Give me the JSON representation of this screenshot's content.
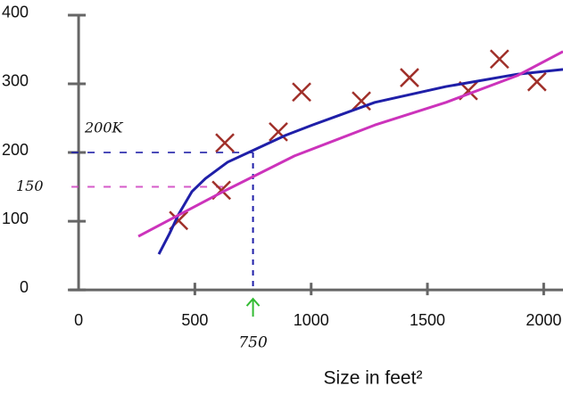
{
  "chart_data": {
    "type": "scatter",
    "x_label": "Size in feet²",
    "xlim": [
      -338,
      2083
    ],
    "ylim": [
      -153,
      422
    ],
    "xticks": [
      0,
      500,
      1000,
      1500,
      2000
    ],
    "yticks": [
      0,
      100,
      200,
      300,
      400
    ],
    "series": [
      {
        "type": "scatter",
        "color": "#a0302a",
        "x": [
          430,
          614,
          629,
          859,
          959,
          1216,
          1423,
          1676,
          1810,
          1971
        ],
        "values": [
          101,
          145,
          214,
          230,
          288,
          275,
          309,
          290,
          336,
          303
        ]
      },
      {
        "type": "line",
        "color": "#1f1fa8",
        "x": [
          345,
          391,
          430,
          487,
          545,
          641,
          737,
          890,
          1005,
          1274,
          1580,
          1887,
          2083
        ],
        "values": [
          52,
          82,
          110,
          143,
          162,
          186,
          201,
          225,
          240,
          273,
          296,
          314,
          321
        ]
      },
      {
        "type": "line",
        "color": "#cc33bb",
        "x": [
          257,
          621,
          928,
          1274,
          1580,
          1887,
          2083
        ],
        "values": [
          78,
          143,
          195,
          240,
          273,
          312,
          347
        ]
      }
    ],
    "annotations": [
      {
        "text": "200K",
        "y": 200,
        "x": 750,
        "color": "#1f1fa8"
      },
      {
        "text": "150",
        "y": 150,
        "color": "#cc33bb"
      },
      {
        "text": "750",
        "x": 750,
        "color": "#33bb33"
      }
    ]
  }
}
